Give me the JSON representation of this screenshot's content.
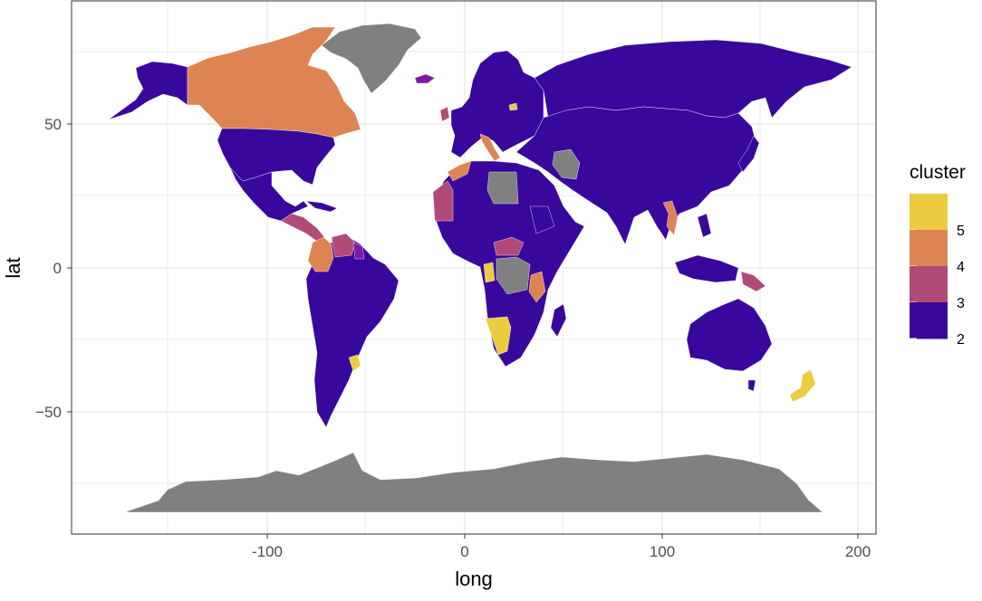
{
  "chart_data": {
    "type": "map",
    "xlabel": "long",
    "ylabel": "lat",
    "xlim": [
      -190,
      210
    ],
    "ylim": [
      -88,
      88
    ],
    "x_ticks": [
      "-100",
      "0",
      "100",
      "200"
    ],
    "y_ticks": [
      "50",
      "0",
      "−50"
    ],
    "grid": true,
    "legend": {
      "title": "cluster",
      "placement": "right",
      "levels": [
        "5",
        "4",
        "3",
        "2"
      ],
      "colors": {
        "5": "#eccb3f",
        "4": "#dd8452",
        "3": "#b24a78",
        "2": "#38089c",
        "1": "#7e19a4",
        "NA": "#808080"
      }
    },
    "regions": [
      {
        "name": "Canada",
        "cluster": "4"
      },
      {
        "name": "United States",
        "cluster": "2"
      },
      {
        "name": "Alaska",
        "cluster": "2"
      },
      {
        "name": "Greenland",
        "cluster": "NA"
      },
      {
        "name": "Mexico",
        "cluster": "2"
      },
      {
        "name": "Central America",
        "cluster": "3"
      },
      {
        "name": "Colombia",
        "cluster": "4"
      },
      {
        "name": "Venezuela",
        "cluster": "3"
      },
      {
        "name": "Guyana",
        "cluster": "1"
      },
      {
        "name": "South America",
        "cluster": "2"
      },
      {
        "name": "Uruguay",
        "cluster": "5"
      },
      {
        "name": "Iceland",
        "cluster": "1"
      },
      {
        "name": "Ireland",
        "cluster": "3"
      },
      {
        "name": "Italy",
        "cluster": "4"
      },
      {
        "name": "Europe",
        "cluster": "2"
      },
      {
        "name": "Estonia",
        "cluster": "5"
      },
      {
        "name": "Morocco",
        "cluster": "4"
      },
      {
        "name": "Western Sahara",
        "cluster": "3"
      },
      {
        "name": "Libya",
        "cluster": "NA"
      },
      {
        "name": "Africa",
        "cluster": "2"
      },
      {
        "name": "Central African Republic",
        "cluster": "3"
      },
      {
        "name": "Gabon",
        "cluster": "5"
      },
      {
        "name": "Congo",
        "cluster": "NA"
      },
      {
        "name": "Tanzania",
        "cluster": "4"
      },
      {
        "name": "Namibia",
        "cluster": "5"
      },
      {
        "name": "Madagascar",
        "cluster": "2"
      },
      {
        "name": "Russia",
        "cluster": "2"
      },
      {
        "name": "Asia",
        "cluster": "2"
      },
      {
        "name": "Iran",
        "cluster": "NA"
      },
      {
        "name": "Vietnam",
        "cluster": "4"
      },
      {
        "name": "Indonesia",
        "cluster": "2"
      },
      {
        "name": "Papua New Guinea",
        "cluster": "3"
      },
      {
        "name": "Australia",
        "cluster": "2"
      },
      {
        "name": "New Zealand",
        "cluster": "5"
      },
      {
        "name": "Antarctica",
        "cluster": "NA"
      }
    ]
  }
}
